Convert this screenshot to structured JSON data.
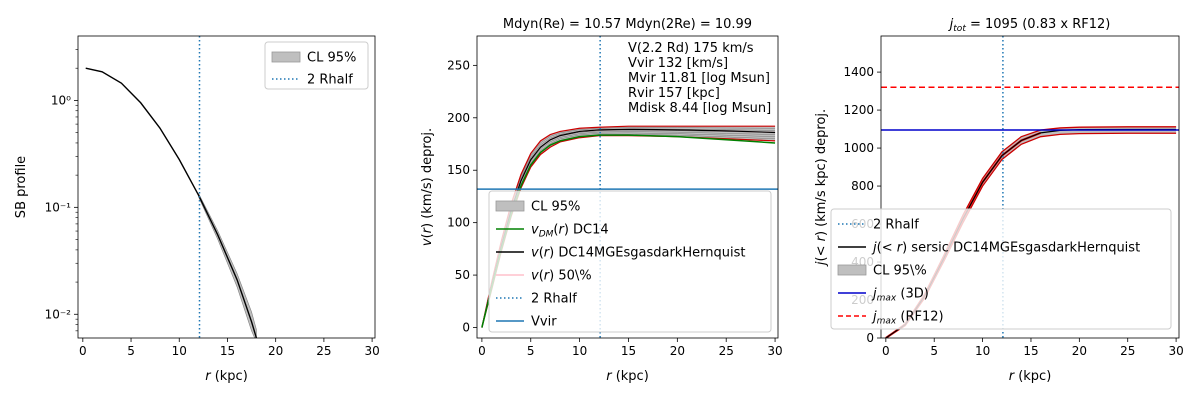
{
  "figure": {
    "description_panels": 3
  },
  "colors": {
    "shade": "#bfbfbf",
    "rhalf": "#1f77b4",
    "vvir": "#1f77b4",
    "dm": "#008000",
    "total": "#000000",
    "median": "#ffc0cb",
    "cl_lines": "#cc0000",
    "jmax3d": "#0000cc",
    "jrf12": "#ff0000"
  },
  "chart_data": [
    {
      "id": "sb",
      "type": "line",
      "title": "",
      "xlabel": "r (kpc)",
      "ylabel": "SB profile",
      "yscale": "log",
      "xlim": [
        -0.5,
        30.3
      ],
      "ylim": [
        0.006,
        4
      ],
      "xticks": [
        0,
        5,
        10,
        15,
        20,
        25,
        30
      ],
      "yticks": [
        {
          "v": 1.0,
          "label": "10⁰"
        },
        {
          "v": 0.1,
          "label": "10⁻¹"
        },
        {
          "v": 0.01,
          "label": "10⁻²"
        }
      ],
      "rhalf2": 12.1,
      "series": [
        {
          "name": "SB profile",
          "x": [
            0.3,
            2,
            4,
            6,
            8,
            10,
            12,
            14,
            16,
            17.5,
            18
          ],
          "y": [
            2.0,
            1.85,
            1.45,
            0.95,
            0.55,
            0.28,
            0.13,
            0.055,
            0.021,
            0.0085,
            0.006
          ]
        }
      ],
      "band": {
        "x": [
          12,
          14,
          16,
          17.5,
          18
        ],
        "lo": [
          0.125,
          0.05,
          0.018,
          0.007,
          0.0055
        ],
        "hi": [
          0.135,
          0.06,
          0.024,
          0.0105,
          0.0072
        ]
      },
      "legend": [
        {
          "label": "CL 95%",
          "kind": "patch"
        },
        {
          "label": "2 Rhalf",
          "kind": "dotted"
        }
      ]
    },
    {
      "id": "vel",
      "type": "line",
      "title": "Mdyn(Re) = 10.57  Mdyn(2Re) = 10.99",
      "xlabel": "r (kpc)",
      "ylabel": "v(r) (km/s) deproj.",
      "xlim": [
        -0.5,
        30.3
      ],
      "ylim": [
        -10,
        278
      ],
      "xticks": [
        0,
        5,
        10,
        15,
        20,
        25,
        30
      ],
      "yticks": [
        0,
        50,
        100,
        150,
        200,
        250
      ],
      "rhalf2": 12.1,
      "vvir": 132,
      "annotations": [
        "V(2.2 Rd) 175 km/s",
        "Vvir 132 [km/s]",
        "Mvir 11.81 [log Msun]",
        "Rvir 157 [kpc]",
        "Mdisk 8.44 [log Msun]"
      ],
      "series": [
        {
          "name": "v_DM(r) DC14",
          "x": [
            0,
            1,
            2,
            3,
            4,
            5,
            6,
            7,
            8,
            10,
            12,
            15,
            20,
            25,
            30
          ],
          "y": [
            0,
            38,
            75,
            108,
            135,
            155,
            167,
            174,
            178,
            182,
            183.5,
            183.5,
            182,
            179,
            176
          ]
        },
        {
          "name": "v(r) DC14MGEsgasdarkHernquist",
          "x": [
            0,
            1,
            2,
            3,
            4,
            5,
            6,
            7,
            8,
            10,
            12,
            15,
            20,
            25,
            30
          ],
          "y": [
            0,
            40,
            78,
            112,
            140,
            160,
            172,
            179,
            183,
            187,
            188.5,
            189,
            188.5,
            187.5,
            186
          ]
        },
        {
          "name": "v(r) 50%",
          "x": [
            0,
            1,
            2,
            3,
            4,
            5,
            6,
            7,
            8,
            10,
            12,
            15,
            20,
            25,
            30
          ],
          "y": [
            0,
            40,
            78,
            112,
            140,
            160,
            172,
            179,
            183,
            187,
            188.5,
            189,
            188.5,
            187.5,
            186
          ]
        },
        {
          "name": "CL upper",
          "x": [
            0,
            1,
            2,
            3,
            4,
            5,
            6,
            7,
            8,
            10,
            12,
            15,
            20,
            25,
            30
          ],
          "y": [
            0,
            43,
            83,
            118,
            146,
            166,
            178,
            184,
            187,
            190,
            191,
            192,
            192,
            192,
            192
          ]
        },
        {
          "name": "CL lower",
          "x": [
            0,
            1,
            2,
            3,
            4,
            5,
            6,
            7,
            8,
            10,
            12,
            15,
            20,
            25,
            30
          ],
          "y": [
            0,
            36,
            73,
            106,
            133,
            153,
            165,
            172,
            177,
            181,
            183,
            183,
            182,
            180,
            178
          ]
        }
      ],
      "legend": [
        {
          "label": "CL 95%",
          "kind": "patch"
        },
        {
          "label": "v_DM(r) DC14",
          "kind": "line",
          "color": "#008000"
        },
        {
          "label": "v(r) DC14MGEsgasdarkHernquist",
          "kind": "line",
          "color": "#000000"
        },
        {
          "label": "v(r) 50\\%",
          "kind": "line",
          "color": "#ffc0cb"
        },
        {
          "label": "2 Rhalf",
          "kind": "dotted"
        },
        {
          "label": "Vvir",
          "kind": "line",
          "color": "#1f77b4"
        }
      ]
    },
    {
      "id": "jtot",
      "type": "line",
      "title": "j_tot = 1095 (0.83 x RF12)",
      "xlabel": "r (kpc)",
      "ylabel": "j(<r) (km/s kpc) deproj.",
      "xlim": [
        -0.5,
        30.3
      ],
      "ylim": [
        0,
        1590
      ],
      "xticks": [
        0,
        5,
        10,
        15,
        20,
        25,
        30
      ],
      "yticks": [
        0,
        200,
        400,
        600,
        800,
        1000,
        1200,
        1400
      ],
      "rhalf2": 12.1,
      "jmax_3d": 1095,
      "jmax_rf12": 1320,
      "series": [
        {
          "name": "j(<r) sersic DC14MGEsgasdarkHernquist",
          "x": [
            0,
            2,
            4,
            6,
            8,
            10,
            12,
            14,
            16,
            18,
            20,
            25,
            30
          ],
          "y": [
            0,
            70,
            220,
            420,
            630,
            820,
            960,
            1040,
            1080,
            1093,
            1097,
            1098,
            1098
          ]
        },
        {
          "name": "CL upper",
          "x": [
            0,
            2,
            4,
            6,
            8,
            10,
            12,
            14,
            16,
            18,
            20,
            25,
            30
          ],
          "y": [
            0,
            75,
            230,
            435,
            650,
            840,
            980,
            1060,
            1095,
            1106,
            1110,
            1112,
            1112
          ]
        },
        {
          "name": "CL lower",
          "x": [
            0,
            2,
            4,
            6,
            8,
            10,
            12,
            14,
            16,
            18,
            20,
            25,
            30
          ],
          "y": [
            0,
            65,
            210,
            405,
            610,
            800,
            940,
            1020,
            1060,
            1072,
            1076,
            1078,
            1078
          ]
        }
      ],
      "legend": [
        {
          "label": "2 Rhalf",
          "kind": "dotted"
        },
        {
          "label": "j(<r) sersic DC14MGEsgasdarkHernquist",
          "kind": "line",
          "color": "#000000"
        },
        {
          "label": "CL 95\\%",
          "kind": "patch"
        },
        {
          "label": "j_max (3D)",
          "kind": "line",
          "color": "#0000cc"
        },
        {
          "label": "j_max (RF12)",
          "kind": "dashed",
          "color": "#ff0000"
        }
      ]
    }
  ]
}
